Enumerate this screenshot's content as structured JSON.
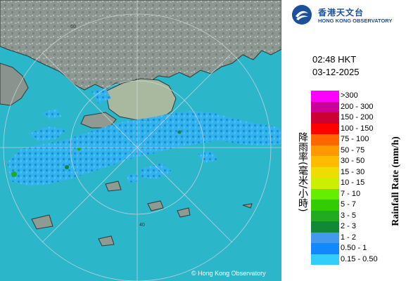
{
  "header": {
    "org_name_zh": "香港天文台",
    "org_name_en": "HONG KONG OBSERVATORY"
  },
  "timestamp": {
    "time": "02:48 HKT",
    "date": "03-12-2025"
  },
  "legend": {
    "title_zh": "降雨率(毫米/小時)",
    "title_en": "Rainfall Rate (mm/h)",
    "items": [
      {
        "label": ">300",
        "color": "#ff00ff"
      },
      {
        "label": "200 - 300",
        "color": "#cc0099"
      },
      {
        "label": "150 - 200",
        "color": "#cc0033"
      },
      {
        "label": "100 - 150",
        "color": "#ff0000"
      },
      {
        "label": "75 - 100",
        "color": "#ff6600"
      },
      {
        "label": "50 - 75",
        "color": "#ff9900"
      },
      {
        "label": "30 - 50",
        "color": "#ffbb00"
      },
      {
        "label": "15 - 30",
        "color": "#eedd00"
      },
      {
        "label": "10 - 15",
        "color": "#ccee00"
      },
      {
        "label": "7 - 10",
        "color": "#66ee00"
      },
      {
        "label": "5 - 7",
        "color": "#33cc00"
      },
      {
        "label": "3 - 5",
        "color": "#22aa22"
      },
      {
        "label": "2 - 3",
        "color": "#118833"
      },
      {
        "label": "1 - 2",
        "color": "#4499ee"
      },
      {
        "label": "0.50 - 1",
        "color": "#1188ff"
      },
      {
        "label": "0.15 - 0.50",
        "color": "#33ccff"
      }
    ]
  },
  "map": {
    "range_rings": [
      "40",
      "60"
    ],
    "copyright": "© Hong Kong Observatory"
  }
}
